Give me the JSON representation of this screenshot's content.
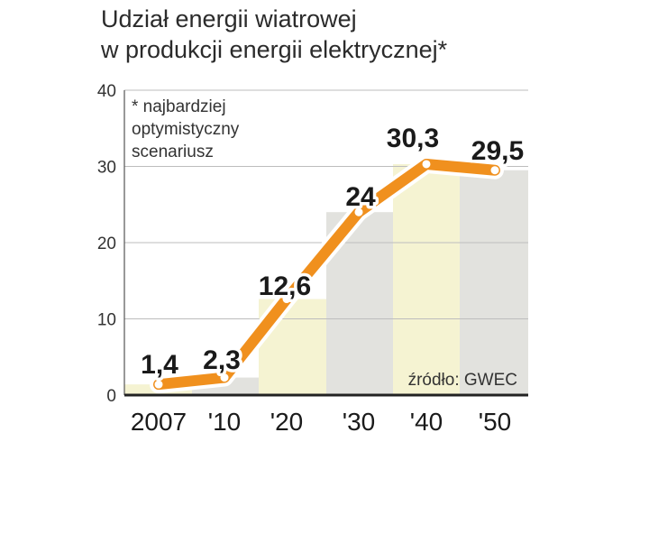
{
  "title": {
    "line1": "Udział energii wiatrowej",
    "line2": "w produkcji energii elektrycznej*"
  },
  "footnote": [
    "* najbardziej",
    "optymistyczny",
    "scenariusz"
  ],
  "source": "źródło: GWEC",
  "chart_data": {
    "type": "line",
    "title": "Udział energii wiatrowej w produkcji energii elektrycznej*",
    "xlabel": "",
    "ylabel": "",
    "categories": [
      "2007",
      "'10",
      "'20",
      "'30",
      "'40",
      "'50"
    ],
    "values": [
      1.4,
      2.3,
      12.6,
      24,
      30.3,
      29.5
    ],
    "data_labels": [
      "1,4",
      "2,3",
      "12,6",
      "24",
      "30,3",
      "29,5"
    ],
    "highlight_index": 4,
    "yticks": [
      0,
      10,
      20,
      30,
      40
    ],
    "ylim": [
      0,
      40
    ],
    "grid": true,
    "colors": {
      "line": "#f0901e",
      "highlight_label": "#c8103c",
      "band_light": "#f5f3d2",
      "band_grey": "#e2e2de"
    }
  }
}
